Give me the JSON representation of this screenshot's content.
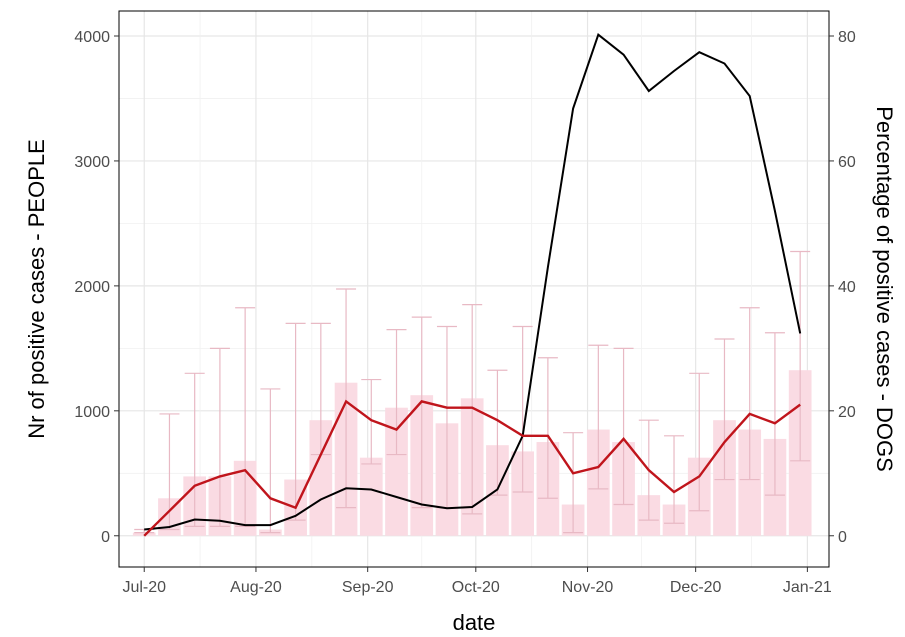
{
  "chart_data": {
    "type": "bar",
    "title": "",
    "xlabel": "date",
    "ylabel": "Nr of positive cases - PEOPLE",
    "y2label": "Percentage of positive cases - DOGS",
    "x_ticks": [
      "Jul-20",
      "Aug-20",
      "Sep-20",
      "Oct-20",
      "Nov-20",
      "Dec-20",
      "Jan-21"
    ],
    "y_ticks": [
      "0",
      "1000",
      "2000",
      "3000",
      "4000"
    ],
    "y2_ticks": [
      "0",
      "20",
      "40",
      "60",
      "80"
    ],
    "ylim": [
      -250,
      4200
    ],
    "y2lim": [
      -5,
      84
    ],
    "grid": true,
    "legend": "none",
    "colors": {
      "bars": "#fadbe3",
      "errorbars": "#e8b9c4",
      "people_line": "#000000",
      "dogs_line": "#c0151c",
      "grid": "#e6e6e6",
      "tick_text": "#4d4d4d"
    },
    "series": [
      {
        "type": "bar",
        "axis": "right",
        "x": [
          "2020-07-01",
          "2020-07-08",
          "2020-07-15",
          "2020-07-22",
          "2020-07-29",
          "2020-08-05",
          "2020-08-12",
          "2020-08-19",
          "2020-08-26",
          "2020-09-02",
          "2020-09-09",
          "2020-09-16",
          "2020-09-23",
          "2020-09-30",
          "2020-10-07",
          "2020-10-14",
          "2020-10-21",
          "2020-10-28",
          "2020-11-04",
          "2020-11-11",
          "2020-11-18",
          "2020-11-25",
          "2020-12-02",
          "2020-12-09",
          "2020-12-16",
          "2020-12-23",
          "2020-12-30"
        ],
        "values": [
          0.5,
          6,
          9.5,
          9.5,
          12,
          1,
          9,
          18.5,
          24.5,
          12.5,
          20.5,
          22.5,
          18,
          22,
          14.5,
          13.5,
          15,
          5,
          17,
          15,
          6.5,
          5,
          12.5,
          18.5,
          17,
          15.5,
          26.5
        ],
        "error_high": [
          1,
          19.5,
          26,
          30,
          36.5,
          23.5,
          34,
          34,
          39.5,
          25,
          33,
          35,
          33.5,
          37,
          26.5,
          33.5,
          28.5,
          16.5,
          30.5,
          30,
          18.5,
          16,
          26,
          31.5,
          36.5,
          32.5,
          45.5
        ],
        "error_low": [
          0.5,
          1,
          1.5,
          1.5,
          1.5,
          0.5,
          2.5,
          13,
          4.5,
          11.5,
          13,
          4.5,
          4.5,
          3.5,
          6.5,
          7,
          6,
          0.5,
          7.5,
          5,
          2.5,
          2,
          4,
          9,
          9,
          6.5,
          12
        ]
      },
      {
        "name": "",
        "type": "line",
        "axis": "left",
        "x": [
          "2020-07-01",
          "2020-07-08",
          "2020-07-15",
          "2020-07-22",
          "2020-07-29",
          "2020-08-05",
          "2020-08-12",
          "2020-08-19",
          "2020-08-26",
          "2020-09-02",
          "2020-09-09",
          "2020-09-16",
          "2020-09-23",
          "2020-09-30",
          "2020-10-07",
          "2020-10-14",
          "2020-10-21",
          "2020-10-28",
          "2020-11-04",
          "2020-11-11",
          "2020-11-18",
          "2020-11-25",
          "2020-12-02",
          "2020-12-09",
          "2020-12-16",
          "2020-12-23",
          "2020-12-30"
        ],
        "values": [
          50,
          70,
          130,
          120,
          85,
          85,
          160,
          290,
          380,
          370,
          310,
          250,
          220,
          230,
          370,
          800,
          2150,
          3420,
          4010,
          3850,
          3560,
          3720,
          3870,
          3780,
          3520,
          2600,
          1620
        ]
      },
      {
        "name": "",
        "type": "line",
        "axis": "right",
        "x": [
          "2020-07-01",
          "2020-07-08",
          "2020-07-15",
          "2020-07-22",
          "2020-07-29",
          "2020-08-05",
          "2020-08-12",
          "2020-08-19",
          "2020-08-26",
          "2020-09-02",
          "2020-09-09",
          "2020-09-16",
          "2020-09-23",
          "2020-09-30",
          "2020-10-07",
          "2020-10-14",
          "2020-10-21",
          "2020-10-28",
          "2020-11-04",
          "2020-11-11",
          "2020-11-18",
          "2020-11-25",
          "2020-12-02",
          "2020-12-09",
          "2020-12-16",
          "2020-12-23",
          "2020-12-30"
        ],
        "values": [
          0,
          4,
          8,
          9.5,
          10.5,
          6,
          4.5,
          13,
          21.5,
          18.5,
          17,
          21.5,
          20.5,
          20.5,
          18.5,
          16,
          16,
          10,
          11,
          15.5,
          10.5,
          7,
          9.5,
          15,
          19.5,
          18,
          21
        ]
      }
    ]
  }
}
